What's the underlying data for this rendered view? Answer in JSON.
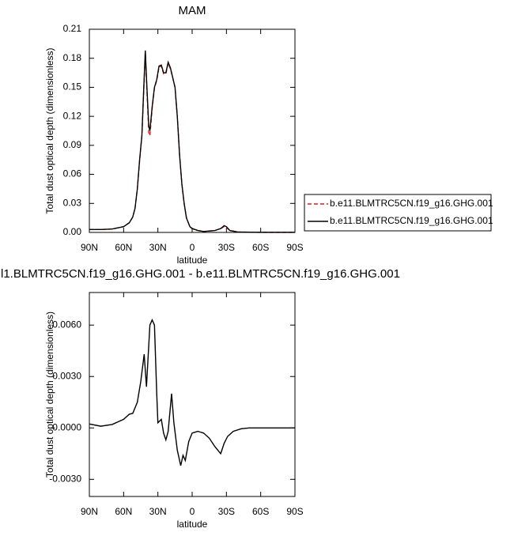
{
  "chart_data": [
    {
      "type": "line",
      "title": "MAM",
      "x_label": "latitude",
      "y_label": "Total dust optical depth (dimensionless)",
      "x": [
        90,
        80,
        70,
        60,
        55,
        52,
        50,
        48,
        46,
        44,
        42,
        41,
        40,
        38,
        37,
        35,
        33,
        31,
        29,
        27,
        25,
        23,
        21,
        19,
        17,
        15,
        13,
        11,
        9,
        7,
        5,
        2,
        0,
        -5,
        -10,
        -20,
        -25,
        -28,
        -30,
        -33,
        -40,
        -50,
        -60,
        -90
      ],
      "series": [
        {
          "name": "b.e11.BLMTRC5CN.f19_g16.GHG.001",
          "color": "#e41a1c",
          "line_style": "dashed",
          "values": [
            0.003,
            0.003,
            0.0035,
            0.006,
            0.01,
            0.016,
            0.025,
            0.045,
            0.074,
            0.1,
            0.158,
            0.186,
            0.158,
            0.103,
            0.1,
            0.128,
            0.149,
            0.157,
            0.171,
            0.172,
            0.164,
            0.164,
            0.175,
            0.169,
            0.16,
            0.15,
            0.12,
            0.08,
            0.05,
            0.03,
            0.015,
            0.006,
            0.004,
            0.002,
            0.001,
            0.002,
            0.004,
            0.006,
            0.005,
            0.002,
            0.0005,
            0.0002,
            0.0001,
            0.0001
          ]
        },
        {
          "name": "b.e11.BLMTRC5CN.f19_g16.GHG.001",
          "color": "#000000",
          "line_style": "solid",
          "values": [
            0.003,
            0.003,
            0.0035,
            0.006,
            0.01,
            0.016,
            0.025,
            0.045,
            0.075,
            0.1,
            0.16,
            0.188,
            0.16,
            0.11,
            0.105,
            0.13,
            0.15,
            0.158,
            0.172,
            0.173,
            0.165,
            0.165,
            0.176,
            0.17,
            0.16,
            0.15,
            0.12,
            0.08,
            0.05,
            0.03,
            0.015,
            0.006,
            0.004,
            0.002,
            0.001,
            0.002,
            0.004,
            0.007,
            0.006,
            0.002,
            0.0005,
            0.0002,
            0.0001,
            0.0001
          ]
        }
      ],
      "xlim": [
        90,
        -90
      ],
      "xticks": [
        {
          "value": 90,
          "label": "90N"
        },
        {
          "value": 60,
          "label": "60N"
        },
        {
          "value": 30,
          "label": "30N"
        },
        0,
        {
          "value": -30,
          "label": "30S"
        },
        {
          "value": -60,
          "label": "60S"
        },
        {
          "value": -90,
          "label": "90S"
        }
      ],
      "ylim": [
        0,
        0.21
      ],
      "yticks": [
        {
          "value": 0,
          "label": "0.00"
        },
        0.03,
        0.06,
        0.09,
        0.12,
        0.15,
        0.18,
        0.21
      ],
      "legend": "right"
    },
    {
      "type": "line",
      "title": "l1.BLMTRC5CN.f19_g16.GHG.001 - b.e11.BLMTRC5CN.f19_g16.GHG.001",
      "x_label": "latitude",
      "y_label": "Total dust optical depth (dimensionless)",
      "x": [
        90,
        80,
        70,
        60,
        55,
        52,
        48,
        45,
        42,
        40,
        37,
        35,
        33,
        31,
        30,
        27,
        25,
        23,
        21,
        18,
        16,
        13,
        10,
        8,
        6,
        3,
        0,
        -5,
        -10,
        -15,
        -20,
        -25,
        -28,
        -31,
        -36,
        -43,
        -50,
        -90
      ],
      "series": [
        {
          "color": "#000000",
          "line_style": "solid",
          "values": [
            0.00023,
            0.0001,
            0.0002,
            0.0005,
            0.0008,
            0.00085,
            0.0015,
            0.0027,
            0.0043,
            0.0024,
            0.006,
            0.0063,
            0.006,
            0.002,
            0.0003,
            0.0005,
            -0.0003,
            -0.0007,
            -0.0002,
            0.002,
            0.0003,
            -0.0013,
            -0.0022,
            -0.0016,
            -0.0019,
            -0.0008,
            -0.0003,
            -0.0002,
            -0.0003,
            -0.0006,
            -0.0011,
            -0.0015,
            -0.0009,
            -0.0005,
            -0.0002,
            -5e-05,
            0,
            0
          ]
        }
      ],
      "xlim": [
        90,
        -90
      ],
      "xticks": [
        {
          "value": 90,
          "label": "90N"
        },
        {
          "value": 60,
          "label": "60N"
        },
        {
          "value": 30,
          "label": "30N"
        },
        0,
        {
          "value": -30,
          "label": "30S"
        },
        {
          "value": -60,
          "label": "60S"
        },
        {
          "value": -90,
          "label": "90S"
        }
      ],
      "ylim": [
        -0.004,
        0.0079
      ],
      "yticks": [
        {
          "value": -0.003,
          "label": "-0.0030"
        },
        {
          "value": 0,
          "label": "0.0000"
        },
        {
          "value": 0.003,
          "label": "0.0030"
        },
        {
          "value": 0.006,
          "label": "0.0060"
        }
      ]
    }
  ]
}
